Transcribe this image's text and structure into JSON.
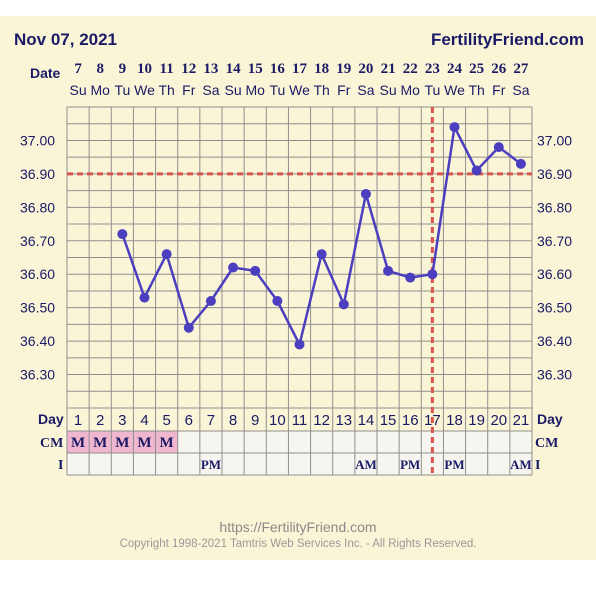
{
  "header": {
    "date": "Nov 07, 2021",
    "site": "FertilityFriend.com"
  },
  "footer": {
    "url": "https://FertilityFriend.com",
    "copyright": "Copyright 1998-2021 Tamtris Web Services Inc. - All Rights Reserved."
  },
  "chart_data": {
    "type": "line",
    "row_labels": {
      "date": "Date",
      "day": "Day",
      "cm": "CM",
      "i": "I"
    },
    "dates": [
      "7",
      "8",
      "9",
      "10",
      "11",
      "12",
      "13",
      "14",
      "15",
      "16",
      "17",
      "18",
      "19",
      "20",
      "21",
      "22",
      "23",
      "24",
      "25",
      "26",
      "27"
    ],
    "weekdays": [
      "Su",
      "Mo",
      "Tu",
      "We",
      "Th",
      "Fr",
      "Sa",
      "Su",
      "Mo",
      "Tu",
      "We",
      "Th",
      "Fr",
      "Sa",
      "Su",
      "Mo",
      "Tu",
      "We",
      "Th",
      "Fr",
      "Sa"
    ],
    "cycle_days": [
      "1",
      "2",
      "3",
      "4",
      "5",
      "6",
      "7",
      "8",
      "9",
      "10",
      "11",
      "12",
      "13",
      "14",
      "15",
      "16",
      "17",
      "18",
      "19",
      "20",
      "21"
    ],
    "y_ticks": [
      "37.00",
      "36.90",
      "36.80",
      "36.70",
      "36.60",
      "36.50",
      "36.40",
      "36.30"
    ],
    "ylim": [
      36.2,
      37.1
    ],
    "series": [
      {
        "values": [
          null,
          null,
          36.72,
          36.53,
          36.66,
          36.44,
          36.52,
          36.62,
          36.61,
          36.52,
          36.39,
          36.66,
          36.51,
          36.84,
          36.61,
          36.59,
          36.6,
          37.04,
          36.91,
          36.98,
          36.93
        ]
      }
    ],
    "coverline": 36.9,
    "ovulation_day": 17,
    "cm": [
      "M",
      "M",
      "M",
      "M",
      "M",
      "",
      "",
      "",
      "",
      "",
      "",
      "",
      "",
      "",
      "",
      "",
      "",
      "",
      "",
      "",
      ""
    ],
    "intercourse": [
      "",
      "",
      "",
      "",
      "",
      "",
      "PM",
      "",
      "",
      "",
      "",
      "",
      "",
      "AM",
      "",
      "PM",
      "",
      "PM",
      "",
      "",
      "AM"
    ],
    "colors": {
      "line": "#4b3fbf",
      "marker": "#4b3fbf",
      "coverline": "#d9534f",
      "grid": "#8f8f8f",
      "cm_fill": "#f0b6cf",
      "text": "#1a1a66"
    }
  }
}
